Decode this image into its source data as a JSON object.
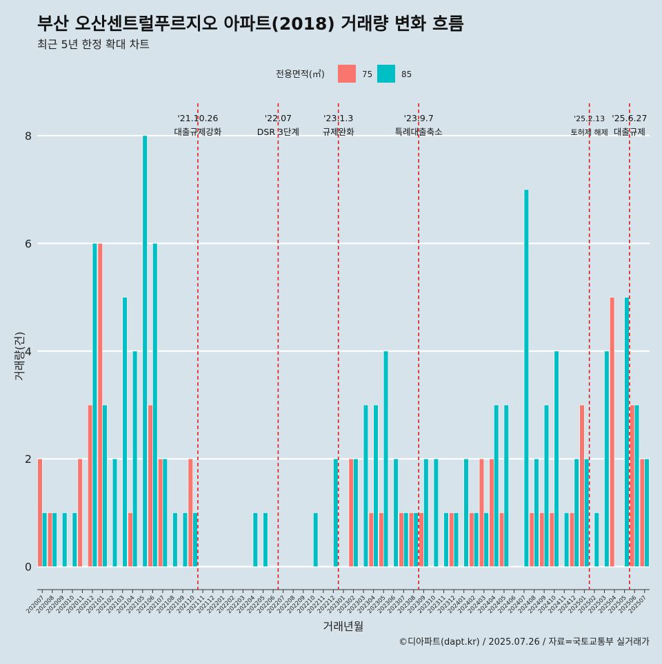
{
  "chart_data": {
    "type": "bar",
    "title": "부산 오산센트럴푸르지오 아파트(2018) 거래량 변화 흐름",
    "subtitle": "최근 5년 한정 확대 차트",
    "xlabel": "거래년월",
    "ylabel": "거래량(건)",
    "caption": "©디아파트(dapt.kr) / 2025.07.26 / 자료=국토교통부 실거래가",
    "ylim": [
      -0.35,
      8.6
    ],
    "yticks": [
      0,
      2,
      4,
      6,
      8
    ],
    "grid": true,
    "legend": {
      "title": "전용면적(㎡)",
      "position": "top"
    },
    "categories": [
      "202007",
      "202008",
      "202009",
      "202010",
      "202011",
      "202012",
      "202101",
      "202102",
      "202103",
      "202104",
      "202105",
      "202106",
      "202107",
      "202108",
      "202109",
      "202110",
      "202111",
      "202112",
      "202201",
      "202202",
      "202203",
      "202204",
      "202205",
      "202206",
      "202207",
      "202208",
      "202209",
      "202210",
      "202211",
      "202212",
      "202301",
      "202302",
      "202303",
      "202304",
      "202305",
      "202306",
      "202307",
      "202308",
      "202309",
      "202310",
      "202311",
      "202312",
      "202401",
      "202402",
      "202403",
      "202404",
      "202405",
      "202406",
      "202407",
      "202408",
      "202409",
      "202410",
      "202411",
      "202412",
      "202501",
      "202502",
      "202503",
      "202504",
      "202505",
      "202506",
      "202507"
    ],
    "series": [
      {
        "name": "75",
        "color": "#f8766d",
        "values": [
          2,
          1,
          0,
          0,
          2,
          3,
          6,
          0,
          0,
          1,
          0,
          3,
          2,
          0,
          0,
          2,
          0,
          0,
          0,
          0,
          0,
          0,
          0,
          0,
          0,
          0,
          0,
          0,
          0,
          0,
          0,
          2,
          0,
          1,
          1,
          0,
          1,
          1,
          1,
          0,
          0,
          1,
          0,
          1,
          2,
          2,
          1,
          0,
          0,
          1,
          1,
          1,
          0,
          1,
          3,
          0,
          0,
          5,
          0,
          3,
          2
        ]
      },
      {
        "name": "85",
        "color": "#00bfc4",
        "values": [
          1,
          1,
          1,
          1,
          0,
          6,
          3,
          2,
          5,
          4,
          8,
          6,
          2,
          1,
          1,
          1,
          0,
          0,
          0,
          0,
          0,
          1,
          1,
          0,
          0,
          0,
          0,
          1,
          0,
          2,
          0,
          2,
          3,
          3,
          4,
          2,
          1,
          1,
          2,
          2,
          1,
          1,
          2,
          1,
          1,
          3,
          3,
          0,
          7,
          2,
          3,
          4,
          1,
          2,
          2,
          1,
          4,
          0,
          5,
          3,
          2
        ]
      }
    ],
    "events": [
      {
        "after": "202110",
        "date": "'21.10.26",
        "label": "대출규제강화"
      },
      {
        "after": "202206",
        "date": "'22.07",
        "label": "DSR 3단계"
      },
      {
        "after": "202212",
        "date": "'23.1.3",
        "label": "규제완화"
      },
      {
        "after": "202308",
        "date": "'23.9.7",
        "label": "특례대출축소"
      },
      {
        "after": "202501",
        "date": "'25.2.13",
        "label": "토허제 해제"
      },
      {
        "after": "202505",
        "date": "'25.6.27",
        "label": "대출규제"
      }
    ]
  }
}
